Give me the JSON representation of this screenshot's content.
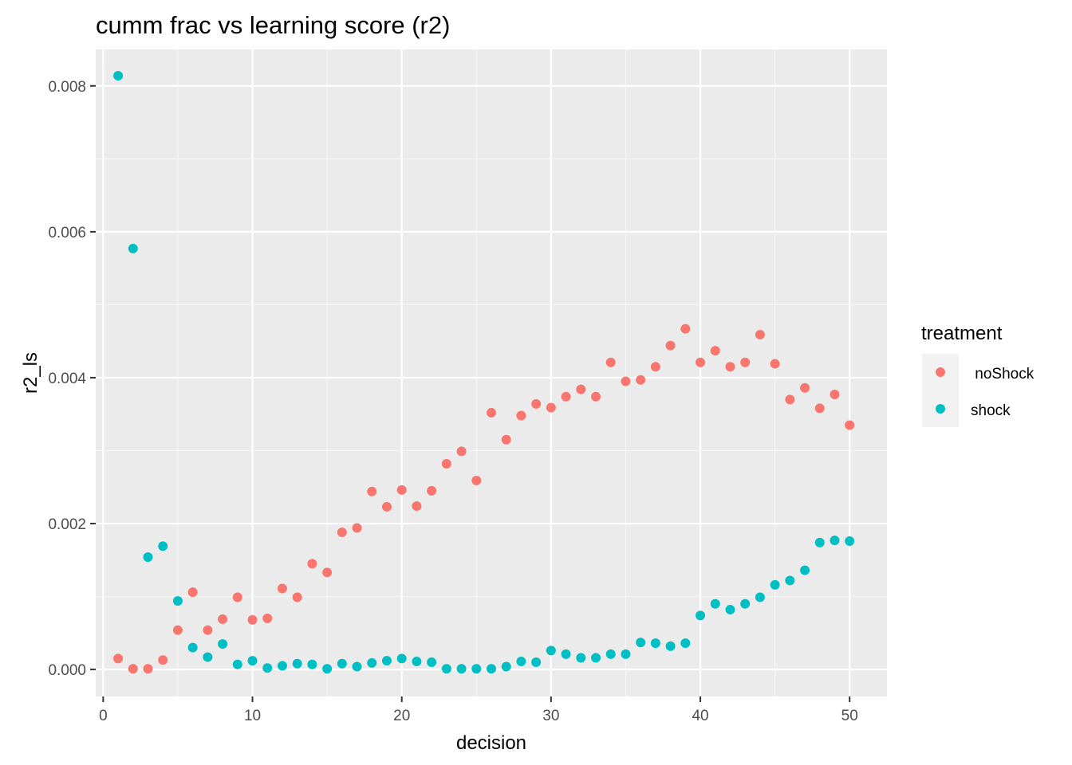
{
  "chart_data": {
    "type": "scatter",
    "title": "cumm frac vs learning score (r2)",
    "xlabel": "decision",
    "ylabel": "r2_ls",
    "xlim": [
      -0.5,
      52.5
    ],
    "ylim": [
      -0.00037,
      0.0085
    ],
    "x_ticks": [
      0,
      10,
      20,
      30,
      40,
      50
    ],
    "x_tick_labels": [
      "0",
      "10",
      "20",
      "30",
      "40",
      "50"
    ],
    "y_ticks": [
      0,
      0.002,
      0.004,
      0.006,
      0.008
    ],
    "y_tick_labels": [
      "0.000",
      "0.002",
      "0.004",
      "0.006",
      "0.008"
    ],
    "grid": true,
    "legend": {
      "title": "treatment",
      "position": "right"
    },
    "series": [
      {
        "name": " noShock",
        "color": "#F8766D",
        "x": [
          1,
          2,
          3,
          4,
          5,
          6,
          7,
          8,
          9,
          10,
          11,
          12,
          13,
          14,
          15,
          16,
          17,
          18,
          19,
          20,
          21,
          22,
          23,
          24,
          25,
          26,
          27,
          28,
          29,
          30,
          31,
          32,
          33,
          34,
          35,
          36,
          37,
          38,
          39,
          40,
          41,
          42,
          43,
          44,
          45,
          46,
          47,
          48,
          49,
          50
        ],
        "y": [
          0.00015,
          1e-05,
          1e-05,
          0.00013,
          0.00054,
          0.00106,
          0.00054,
          0.00069,
          0.00099,
          0.00068,
          0.0007,
          0.00111,
          0.00099,
          0.00145,
          0.00133,
          0.00188,
          0.00194,
          0.00244,
          0.00223,
          0.00246,
          0.00224,
          0.00245,
          0.00282,
          0.00299,
          0.00259,
          0.00352,
          0.00315,
          0.00348,
          0.00364,
          0.00359,
          0.00374,
          0.00384,
          0.00374,
          0.00421,
          0.00395,
          0.00397,
          0.00415,
          0.00444,
          0.00467,
          0.00421,
          0.00437,
          0.00415,
          0.00421,
          0.00459,
          0.00419,
          0.0037,
          0.00386,
          0.00358,
          0.00377,
          0.00335
        ]
      },
      {
        "name": "shock",
        "color": "#00BFC4",
        "x": [
          1,
          2,
          3,
          4,
          5,
          6,
          7,
          8,
          9,
          10,
          11,
          12,
          13,
          14,
          15,
          16,
          17,
          18,
          19,
          20,
          21,
          22,
          23,
          24,
          25,
          26,
          27,
          28,
          29,
          30,
          31,
          32,
          33,
          34,
          35,
          36,
          37,
          38,
          39,
          40,
          41,
          42,
          43,
          44,
          45,
          46,
          47,
          48,
          49,
          50
        ],
        "y": [
          0.00814,
          0.00577,
          0.00154,
          0.00169,
          0.00094,
          0.0003,
          0.00017,
          0.00035,
          7e-05,
          0.00012,
          2e-05,
          5e-05,
          8e-05,
          7e-05,
          1e-05,
          8e-05,
          4e-05,
          9e-05,
          0.00012,
          0.00015,
          0.00011,
          0.0001,
          1e-05,
          1e-05,
          1e-05,
          1e-05,
          4e-05,
          0.00011,
          0.0001,
          0.00026,
          0.00021,
          0.00016,
          0.00016,
          0.00021,
          0.00021,
          0.00037,
          0.00036,
          0.00032,
          0.00036,
          0.00074,
          0.0009,
          0.00082,
          0.0009,
          0.00099,
          0.00116,
          0.00122,
          0.00136,
          0.00174,
          0.00177,
          0.00176
        ]
      }
    ]
  }
}
